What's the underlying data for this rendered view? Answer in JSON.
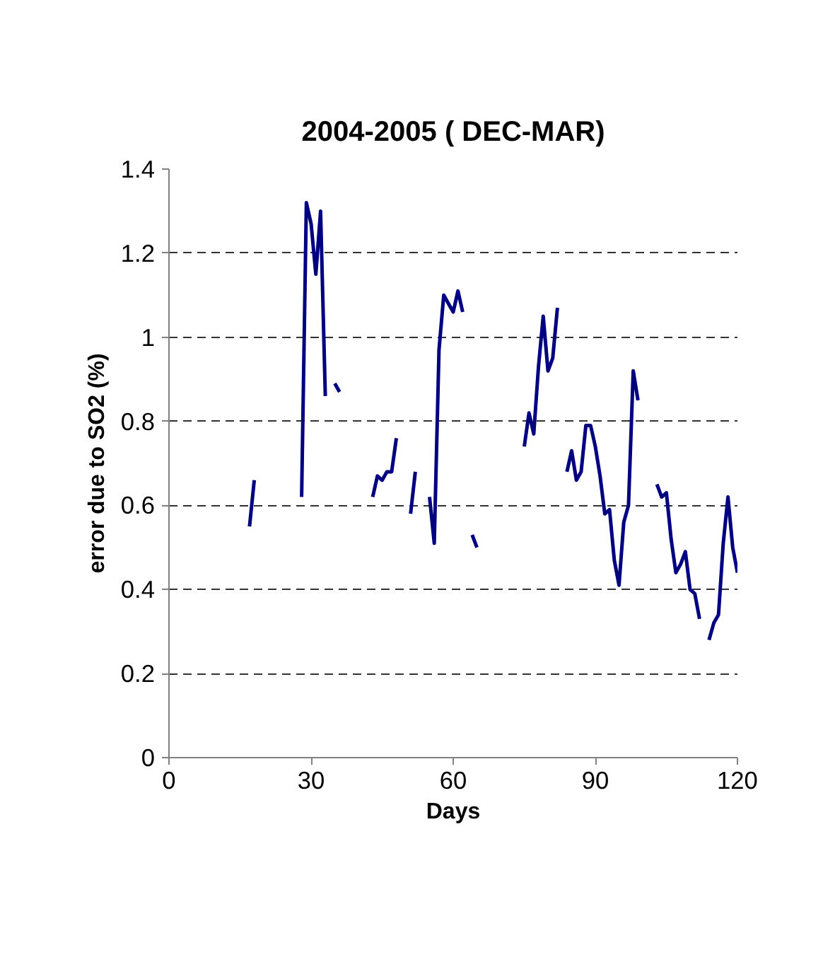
{
  "chart_data": {
    "type": "line",
    "title": "2004-2005 ( DEC-MAR)",
    "xlabel": "Days",
    "ylabel": "error due to SO2 (%)",
    "x": [
      17,
      18,
      19,
      20,
      21,
      22,
      23,
      24,
      25,
      26,
      27,
      28,
      29,
      30,
      31,
      32,
      33,
      34,
      35,
      36,
      37,
      38,
      39,
      40,
      41,
      42,
      43,
      44,
      45,
      46,
      47,
      48,
      49,
      50,
      51,
      52,
      53,
      54,
      55,
      56,
      57,
      58,
      59,
      60,
      61,
      62,
      63,
      64,
      65,
      66,
      67,
      68,
      69,
      70,
      71,
      72,
      73,
      74,
      75,
      76,
      77,
      78,
      79,
      80,
      81,
      82,
      83,
      84,
      85,
      86,
      87,
      88,
      89,
      90,
      91,
      92,
      93,
      94,
      95,
      96,
      97,
      98,
      99,
      100,
      101,
      102,
      103,
      104,
      105,
      106,
      107,
      108,
      109,
      110,
      111,
      112,
      113,
      114,
      115,
      116,
      117,
      118,
      119,
      120
    ],
    "series": [
      {
        "color": "#000080",
        "values": [
          0.55,
          0.66,
          null,
          null,
          null,
          null,
          null,
          null,
          null,
          null,
          null,
          0.62,
          1.32,
          1.27,
          1.15,
          1.3,
          0.86,
          null,
          0.89,
          0.87,
          null,
          null,
          null,
          null,
          null,
          null,
          0.62,
          0.67,
          0.66,
          0.68,
          0.68,
          0.76,
          null,
          null,
          0.58,
          0.68,
          null,
          null,
          0.62,
          0.51,
          0.97,
          1.1,
          1.08,
          1.06,
          1.11,
          1.06,
          null,
          0.53,
          0.5,
          null,
          null,
          null,
          null,
          null,
          null,
          null,
          null,
          null,
          0.74,
          0.82,
          0.77,
          0.93,
          1.05,
          0.92,
          0.95,
          1.07,
          null,
          0.68,
          0.73,
          0.66,
          0.68,
          0.79,
          0.79,
          0.74,
          0.67,
          0.58,
          0.59,
          0.47,
          0.41,
          0.56,
          0.6,
          0.92,
          0.85,
          null,
          null,
          null,
          0.65,
          0.62,
          0.63,
          0.52,
          0.44,
          0.46,
          0.49,
          0.4,
          0.39,
          0.33,
          null,
          0.28,
          0.32,
          0.34,
          0.51,
          0.62,
          0.5,
          0.44
        ]
      }
    ],
    "xlim": [
      0,
      120
    ],
    "xticks": [
      0,
      30,
      60,
      90,
      120
    ],
    "ylim": [
      0,
      1.4
    ],
    "yticks": [
      0,
      0.2,
      0.4,
      0.6,
      0.8,
      1,
      1.2,
      1.4
    ],
    "grid": "y",
    "line_style": "solid",
    "marker": "none"
  }
}
